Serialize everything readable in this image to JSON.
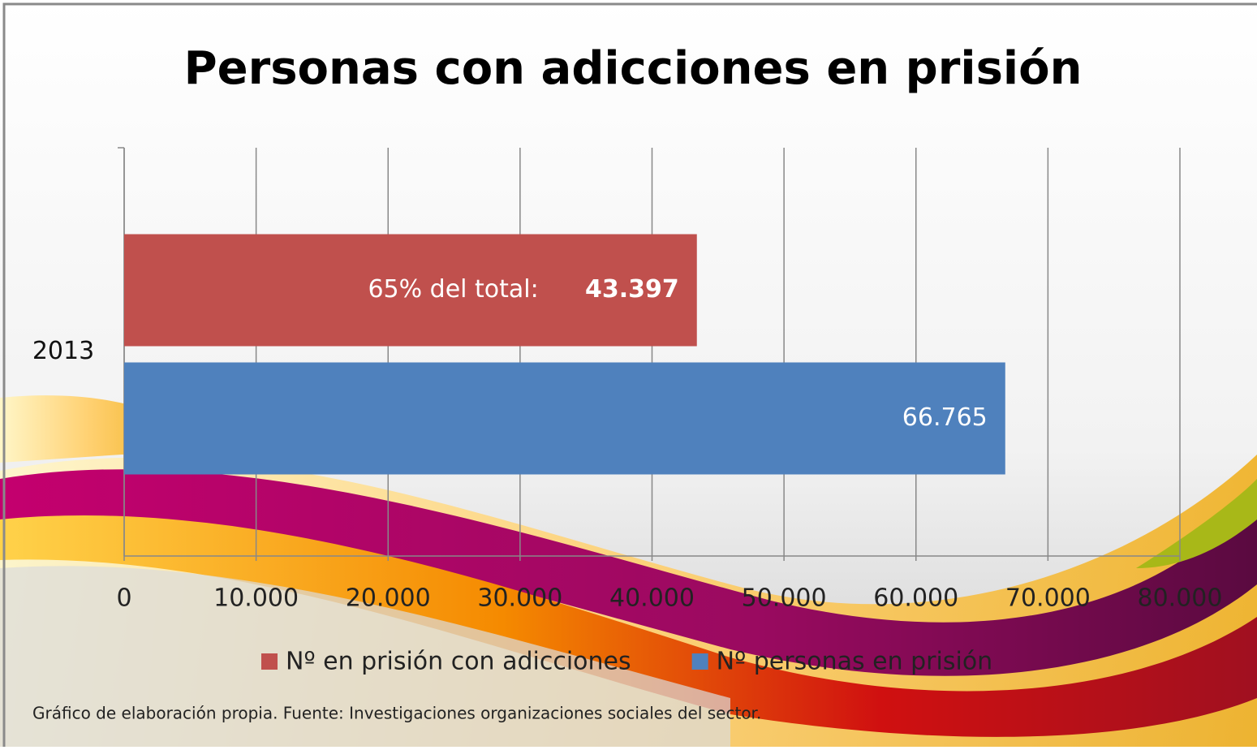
{
  "chart_data": {
    "type": "bar",
    "orientation": "horizontal",
    "title": "Personas con adicciones en prisión",
    "categories": [
      "2013"
    ],
    "series": [
      {
        "name": "Nº en prisión con adicciones",
        "color": "#c0504d",
        "values": [
          43397
        ],
        "value_labels": [
          "43.397"
        ]
      },
      {
        "name": "Nº personas en prisión",
        "color": "#4f81bd",
        "values": [
          66765
        ],
        "value_labels": [
          "66.765"
        ]
      }
    ],
    "annotation": "65% del total:",
    "xlim": [
      0,
      80000
    ],
    "xticks": [
      0,
      {
        "value": 10000,
        "label": "10.000"
      },
      {
        "value": 20000,
        "label": "20.000"
      },
      {
        "value": 30000,
        "label": "30.000"
      },
      {
        "value": 40000,
        "label": "40.000"
      },
      {
        "value": 50000,
        "label": "50.000"
      },
      {
        "value": 60000,
        "label": "60.000"
      },
      {
        "value": 70000,
        "label": "70.000"
      },
      {
        "value": 80000,
        "label": "80.000"
      }
    ],
    "grid": true,
    "legend": "bottom",
    "footnote": "Gráfico de elaboración propia. Fuente: Investigaciones organizaciones sociales del sector."
  }
}
